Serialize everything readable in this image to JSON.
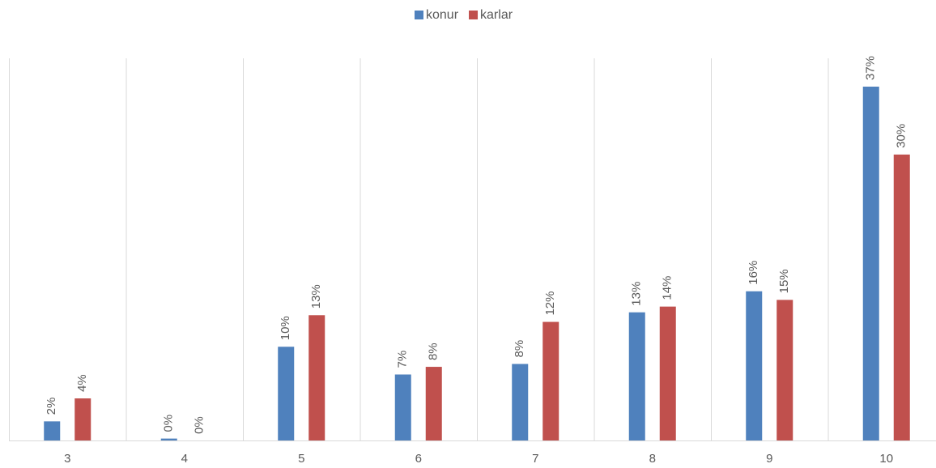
{
  "chart_data": {
    "type": "bar",
    "categories": [
      "3",
      "4",
      "5",
      "6",
      "7",
      "8",
      "9",
      "10"
    ],
    "series": [
      {
        "name": "konur",
        "color": "#4f81bd",
        "values": [
          2.0,
          0.2,
          9.8,
          6.9,
          8.0,
          13.4,
          15.6,
          37.0
        ],
        "value_labels": [
          "2%",
          "0%",
          "10%",
          "7%",
          "8%",
          "13%",
          "16%",
          "37%"
        ]
      },
      {
        "name": "karlar",
        "color": "#c0504d",
        "values": [
          4.4,
          0,
          13.1,
          7.7,
          12.4,
          14.0,
          14.7,
          29.9
        ],
        "value_labels": [
          "4%",
          "0%",
          "13%",
          "8%",
          "12%",
          "14%",
          "15%",
          "30%"
        ]
      }
    ],
    "legend": "top"
  }
}
